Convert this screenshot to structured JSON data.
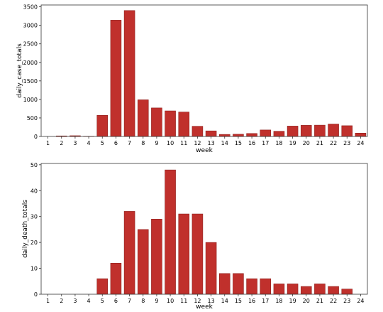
{
  "colors": {
    "bar_fill": "#c0302c",
    "bar_edge": "#8e1f1b",
    "axis": "#333333"
  },
  "chart_data": [
    {
      "type": "bar",
      "categories": [
        "1",
        "2",
        "3",
        "4",
        "5",
        "6",
        "7",
        "8",
        "9",
        "10",
        "11",
        "12",
        "13",
        "14",
        "15",
        "16",
        "17",
        "18",
        "19",
        "20",
        "21",
        "22",
        "23",
        "24"
      ],
      "values": [
        0,
        15,
        20,
        5,
        570,
        3140,
        3400,
        990,
        770,
        690,
        660,
        275,
        150,
        55,
        60,
        80,
        175,
        140,
        280,
        300,
        305,
        335,
        290,
        90
      ],
      "xlabel": "week",
      "ylabel": "daily_case_totals",
      "ylim": [
        0,
        3550
      ],
      "yticks": [
        0,
        500,
        1000,
        1500,
        2000,
        2500,
        3000,
        3500
      ],
      "grid": false
    },
    {
      "type": "bar",
      "categories": [
        "1",
        "2",
        "3",
        "4",
        "5",
        "6",
        "7",
        "8",
        "9",
        "10",
        "11",
        "12",
        "13",
        "14",
        "15",
        "16",
        "17",
        "18",
        "19",
        "20",
        "21",
        "22",
        "23",
        "24"
      ],
      "values": [
        0,
        0,
        0,
        0,
        6,
        12,
        32,
        25,
        29,
        48,
        31,
        31,
        20,
        8,
        8,
        6,
        6,
        4,
        4,
        3,
        4,
        3,
        2,
        0
      ],
      "xlabel": "week",
      "ylabel": "daily_death_totals",
      "ylim": [
        0,
        50.5
      ],
      "yticks": [
        0,
        10,
        20,
        30,
        40,
        50
      ],
      "grid": false
    }
  ]
}
